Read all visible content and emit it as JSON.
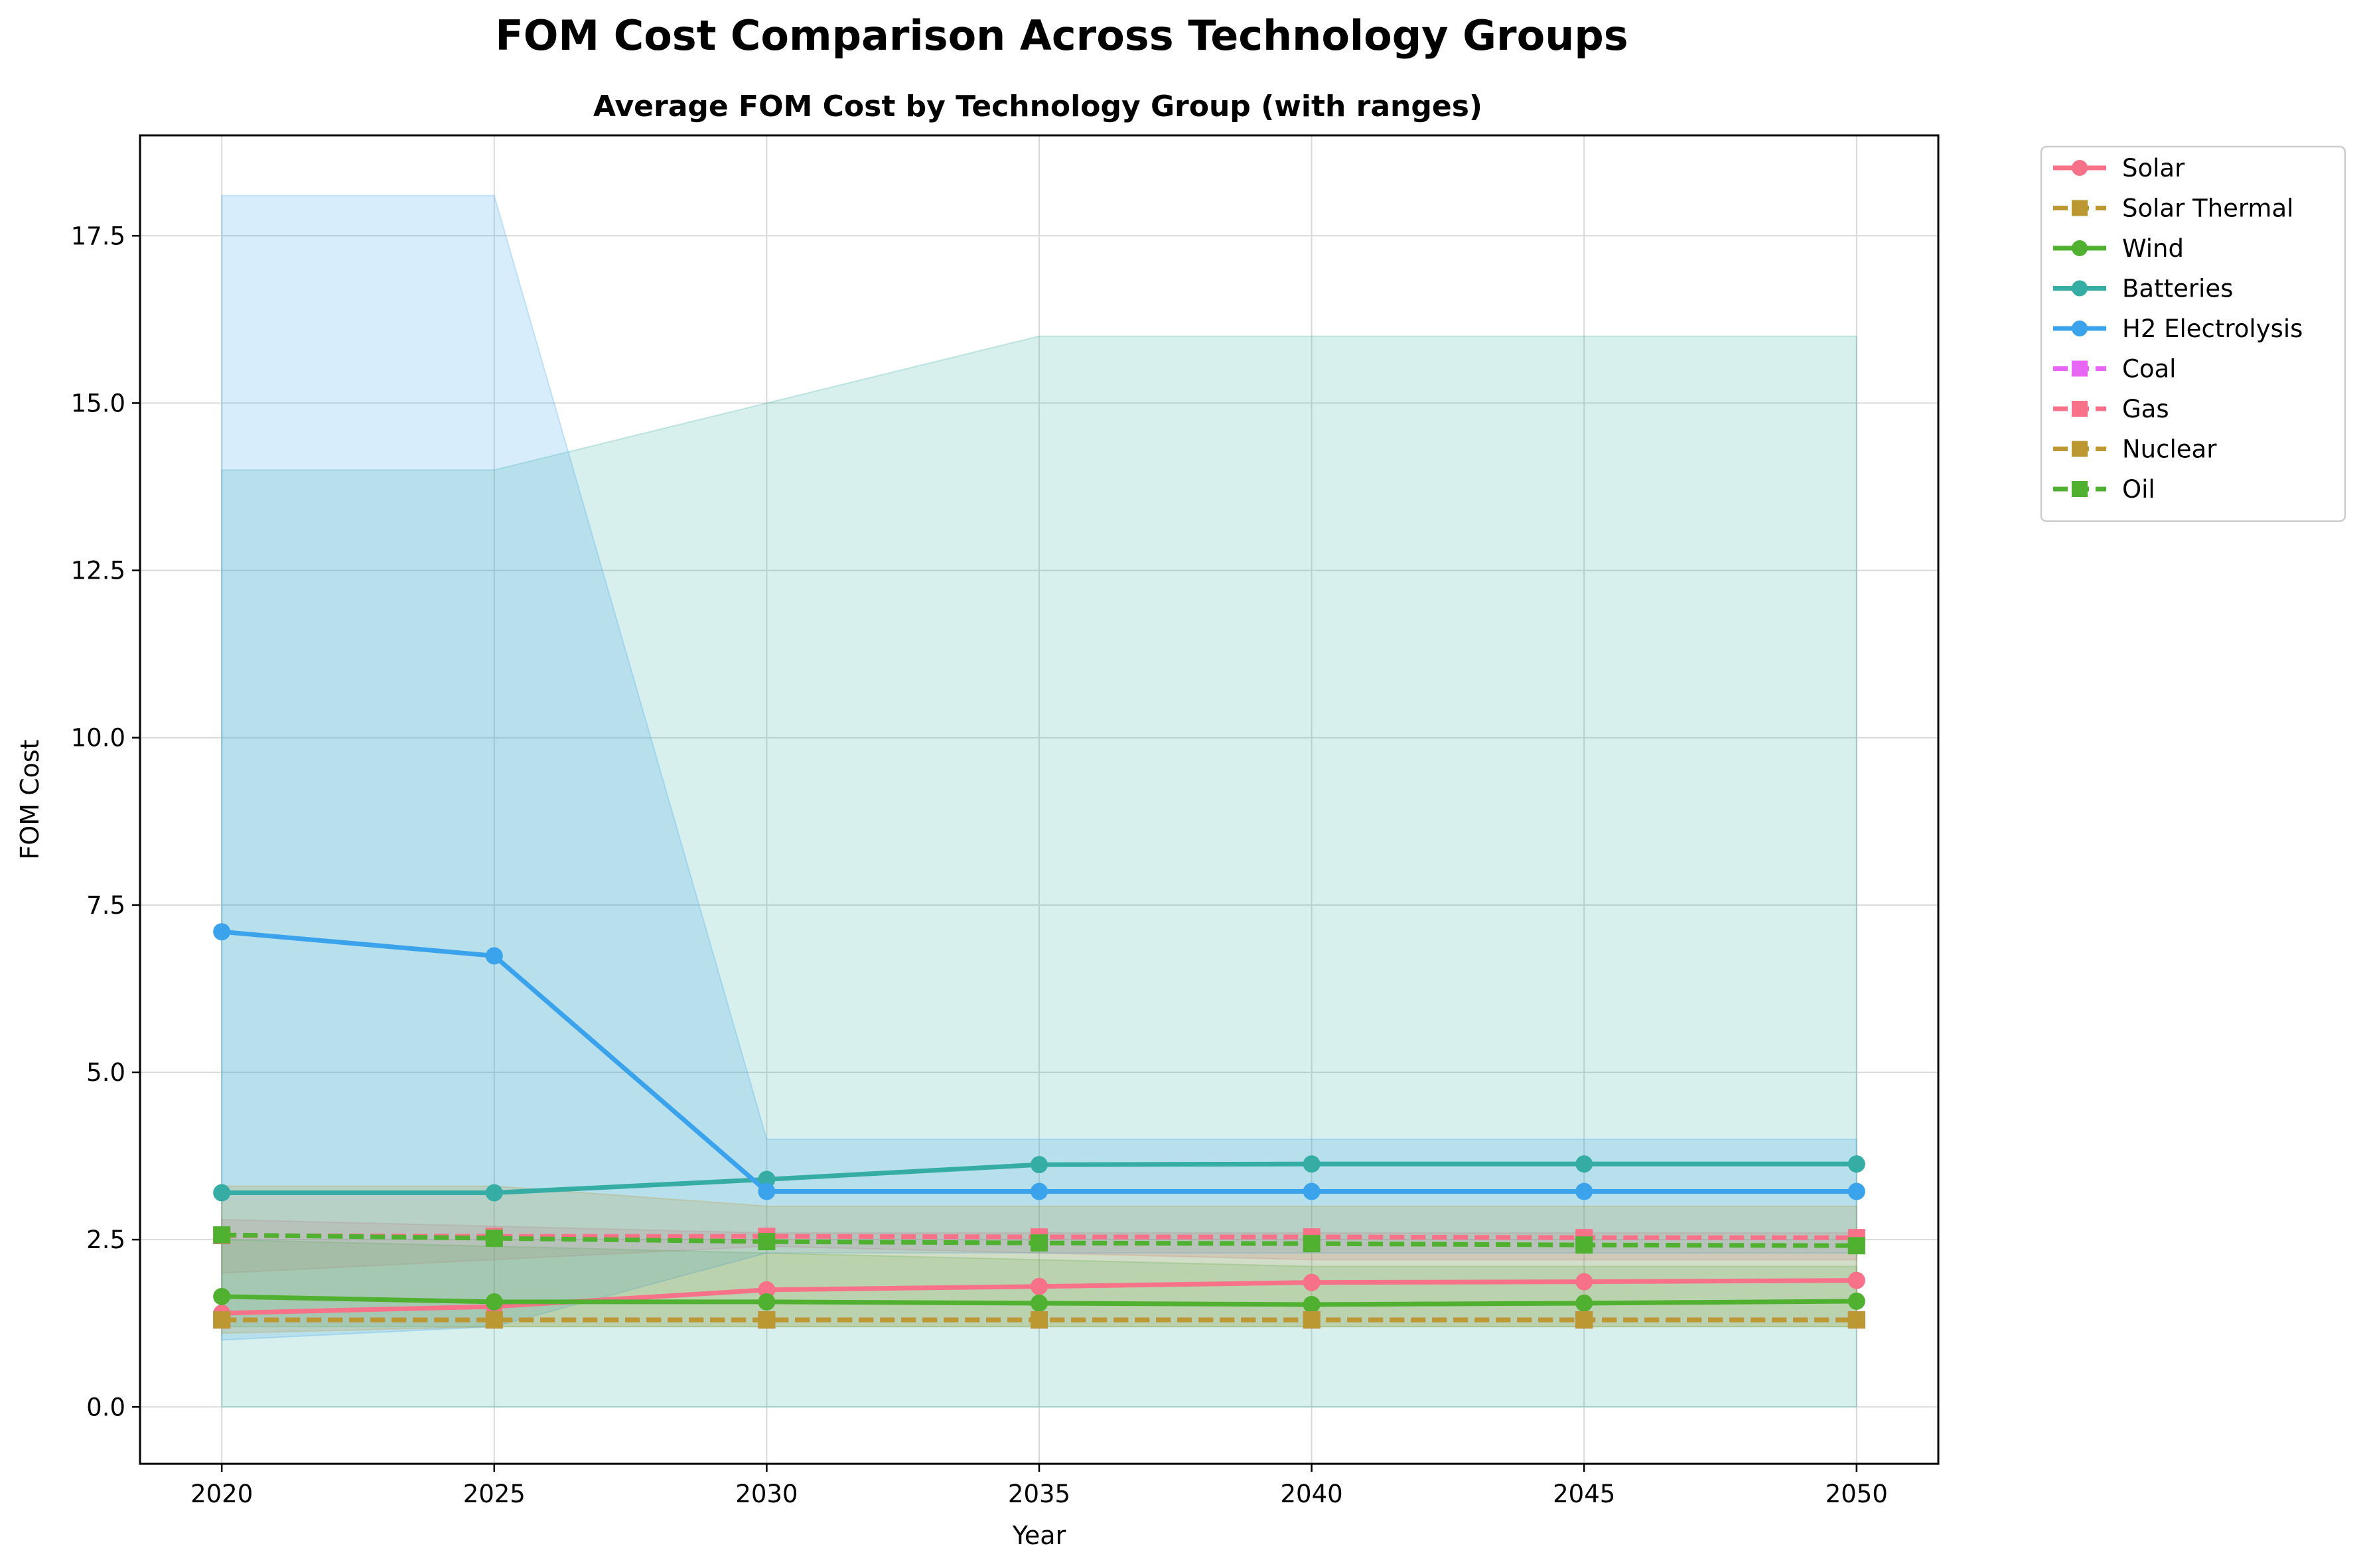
{
  "figure_title": "FOM Cost Comparison Across Technology Groups",
  "chart_data": {
    "type": "line",
    "title": "Average FOM Cost by Technology Group (with ranges)",
    "xlabel": "Year",
    "ylabel": "FOM Cost",
    "x": [
      2020,
      2025,
      2030,
      2035,
      2040,
      2045,
      2050
    ],
    "xlim": [
      2018.5,
      2051.5
    ],
    "ylim": [
      -0.85,
      19.0
    ],
    "xticks": [
      "2020",
      "2025",
      "2030",
      "2035",
      "2040",
      "2045",
      "2050"
    ],
    "yticks": [
      "0.0",
      "2.5",
      "5.0",
      "7.5",
      "10.0",
      "12.5",
      "15.0",
      "17.5"
    ],
    "grid": true,
    "legend_position": "outside-top-right",
    "ranges": [
      {
        "series": "Solar",
        "color": "#f77189",
        "lower": [
          2.0,
          2.2,
          2.4,
          2.3,
          2.2,
          2.2,
          2.2
        ],
        "upper": [
          2.8,
          2.7,
          2.6,
          2.6,
          2.6,
          2.6,
          2.6
        ]
      },
      {
        "series": "Wind",
        "color": "#50b131",
        "lower": [
          1.2,
          1.2,
          1.2,
          1.2,
          1.2,
          1.2,
          1.2
        ],
        "upper": [
          2.5,
          2.4,
          2.3,
          2.2,
          2.1,
          2.1,
          2.1
        ]
      },
      {
        "series": "Batteries",
        "color": "#36ada4",
        "lower": [
          0.0,
          0.0,
          0.0,
          0.0,
          0.0,
          0.0,
          0.0
        ],
        "upper": [
          14.0,
          14.0,
          15.0,
          16.0,
          16.0,
          16.0,
          16.0
        ]
      },
      {
        "series": "H2 Electrolysis",
        "color": "#3ba3ec",
        "lower": [
          1.0,
          1.2,
          2.3,
          2.3,
          2.3,
          2.3,
          2.3
        ],
        "upper": [
          18.1,
          18.1,
          4.0,
          4.0,
          4.0,
          4.0,
          4.0
        ]
      },
      {
        "series": "Nuclear",
        "color": "#bb9832",
        "lower": [
          1.1,
          1.2,
          1.2,
          1.2,
          1.2,
          1.2,
          1.2
        ],
        "upper": [
          3.3,
          3.3,
          3.0,
          3.0,
          3.0,
          3.0,
          3.0
        ]
      }
    ],
    "series": [
      {
        "name": "Solar",
        "color": "#f77189",
        "dashed": false,
        "marker": "circle",
        "values": [
          1.4,
          1.5,
          1.75,
          1.8,
          1.86,
          1.87,
          1.89
        ]
      },
      {
        "name": "Solar Thermal",
        "color": "#bb9832",
        "dashed": true,
        "marker": "square",
        "values": [
          1.3,
          1.3,
          1.3,
          1.3,
          1.3,
          1.3,
          1.3
        ]
      },
      {
        "name": "Wind",
        "color": "#50b131",
        "dashed": false,
        "marker": "circle",
        "values": [
          1.65,
          1.57,
          1.57,
          1.55,
          1.53,
          1.55,
          1.58
        ]
      },
      {
        "name": "Batteries",
        "color": "#36ada4",
        "dashed": false,
        "marker": "circle",
        "values": [
          3.2,
          3.2,
          3.4,
          3.62,
          3.63,
          3.63,
          3.63
        ]
      },
      {
        "name": "H2 Electrolysis",
        "color": "#3ba3ec",
        "dashed": false,
        "marker": "circle",
        "values": [
          7.1,
          6.74,
          3.22,
          3.22,
          3.22,
          3.22,
          3.22
        ]
      },
      {
        "name": "Coal",
        "color": "#e866f4",
        "dashed": true,
        "marker": "square",
        "values": [
          1.3,
          1.3,
          1.3,
          1.3,
          1.3,
          1.3,
          1.3
        ]
      },
      {
        "name": "Gas",
        "color": "#f77189",
        "dashed": true,
        "marker": "square",
        "values": [
          2.56,
          2.55,
          2.55,
          2.54,
          2.54,
          2.53,
          2.53
        ]
      },
      {
        "name": "Nuclear",
        "color": "#bb9832",
        "dashed": true,
        "marker": "square",
        "values": [
          1.3,
          1.3,
          1.3,
          1.3,
          1.3,
          1.3,
          1.3
        ]
      },
      {
        "name": "Oil",
        "color": "#50b131",
        "dashed": true,
        "marker": "square",
        "values": [
          2.57,
          2.52,
          2.47,
          2.45,
          2.44,
          2.42,
          2.41
        ]
      }
    ]
  }
}
